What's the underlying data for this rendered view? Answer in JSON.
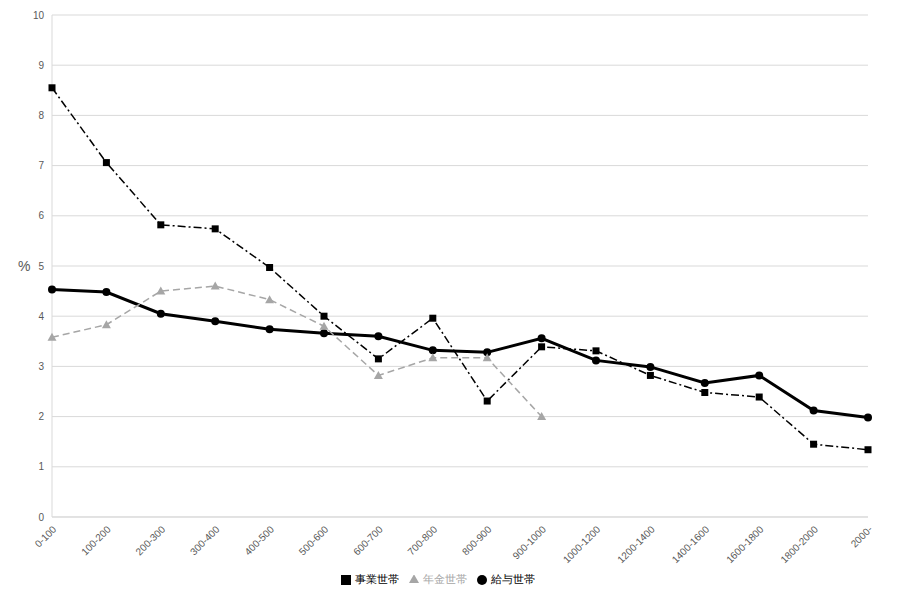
{
  "chart_data": {
    "type": "line",
    "y_label": "%",
    "categories": [
      "0-100",
      "100-200",
      "200-300",
      "300-400",
      "400-500",
      "500-600",
      "600-700",
      "700-800",
      "800-900",
      "900-1000",
      "1000-1200",
      "1200-1400",
      "1400-1600",
      "1600-1800",
      "1800-2000",
      "2000-"
    ],
    "series": [
      {
        "name": "給与世帯",
        "color": "#000000",
        "marker": "circle",
        "line_style": "solid",
        "values": [
          4.53,
          4.48,
          4.05,
          3.9,
          3.74,
          3.66,
          3.6,
          3.32,
          3.28,
          3.56,
          3.12,
          2.99,
          2.67,
          2.82,
          2.12,
          1.98
        ]
      },
      {
        "name": "事業世帯",
        "color": "#000000",
        "marker": "square",
        "line_style": "dashdot",
        "values": [
          8.55,
          7.06,
          5.82,
          5.74,
          4.97,
          4.0,
          3.15,
          3.96,
          2.31,
          3.39,
          3.31,
          2.82,
          2.48,
          2.39,
          1.45,
          1.34
        ]
      },
      {
        "name": "年金世帯",
        "color": "#a6a6a6",
        "marker": "triangle",
        "line_style": "dashed",
        "values": [
          3.58,
          3.83,
          4.5,
          4.6,
          4.33,
          3.8,
          2.82,
          3.17,
          3.17,
          2.0,
          null,
          null,
          null,
          null,
          null,
          null
        ]
      }
    ],
    "ylim": [
      0,
      10
    ],
    "yticks": [
      0,
      1,
      2,
      3,
      4,
      5,
      6,
      7,
      8,
      9,
      10
    ],
    "grid": true,
    "legend": "bottom"
  }
}
